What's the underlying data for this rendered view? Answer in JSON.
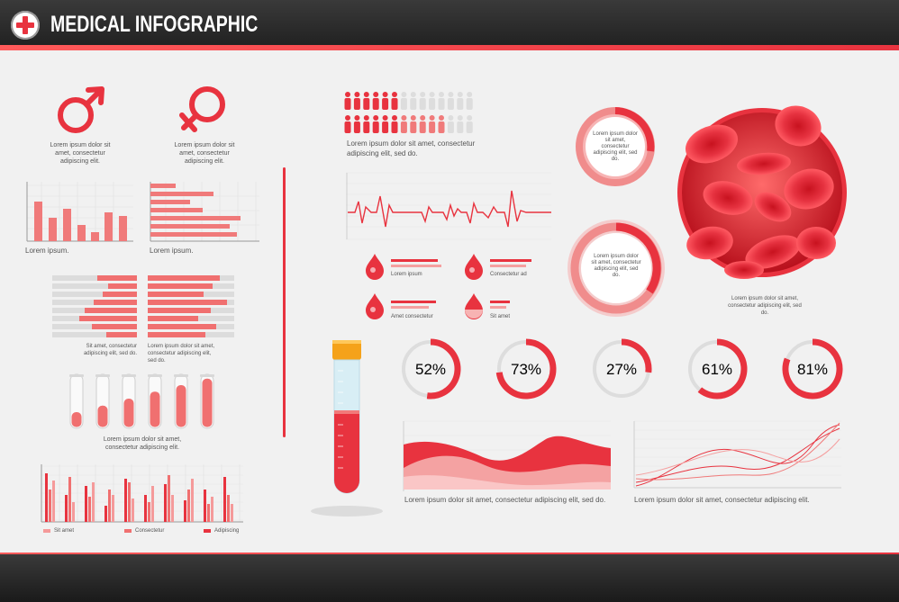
{
  "header": {
    "title": "MEDICAL INFOGRAPHIC"
  },
  "colors": {
    "accent": "#e8333f",
    "light": "#f59a9a",
    "gray": "#dddddd",
    "dark": "#262626"
  },
  "gender": {
    "male_caption": "Lorem ipsum dolor sit amet, consectetur adipiscing elit.",
    "female_caption": "Lorem ipsum dolor sit amet, consectetur adipiscing elit."
  },
  "small_charts": {
    "left_label": "Lorem ipsum.",
    "right_label": "Lorem ipsum."
  },
  "diverging": {
    "left_caption": "Sit amet, consectetur adipiscing elit, sed do.",
    "right_caption": "Lorem ipsum dolor sit amet, consectetur adipiscing elit, sed do."
  },
  "tubes": {
    "caption": "Lorem ipsum dolor sit amet, consectetur adipiscing elit.",
    "levels": [
      0.3,
      0.42,
      0.55,
      0.68,
      0.8,
      0.92
    ]
  },
  "grouped_bars": {
    "legend": [
      "Sit amet",
      "Consectetur",
      "Adipiscing"
    ]
  },
  "people": {
    "caption": "Lorem ipsum dolor sit amet, consectetur adipiscing elit, sed do.",
    "filled_top": 6,
    "filled_bottom": 11,
    "total": 14
  },
  "drops": {
    "labels": [
      "Lorem ipsum",
      "Consectetur ad",
      "Amet consectetur",
      "Sit amet"
    ]
  },
  "rings": {
    "top_caption": "Lorem ipsum dolor sit amet, consectetur adipiscing elit, sed do.",
    "bottom_caption": "Lorem ipsum dolor sit amet, consectetur adipiscing elit, sed do."
  },
  "blood_cells": {
    "caption": "Lorem ipsum dolor sit amet, consectetur adipiscing elit, sed do."
  },
  "percents": [
    {
      "value": 52,
      "label": "52%"
    },
    {
      "value": 73,
      "label": "73%"
    },
    {
      "value": 27,
      "label": "27%"
    },
    {
      "value": 61,
      "label": "61%"
    },
    {
      "value": 81,
      "label": "81%"
    }
  ],
  "area_chart": {
    "caption": "Lorem ipsum dolor sit amet, consectetur adipiscing elit, sed do."
  },
  "line_chart": {
    "caption": "Lorem ipsum dolor sit amet, consectetur adipiscing elit."
  }
}
